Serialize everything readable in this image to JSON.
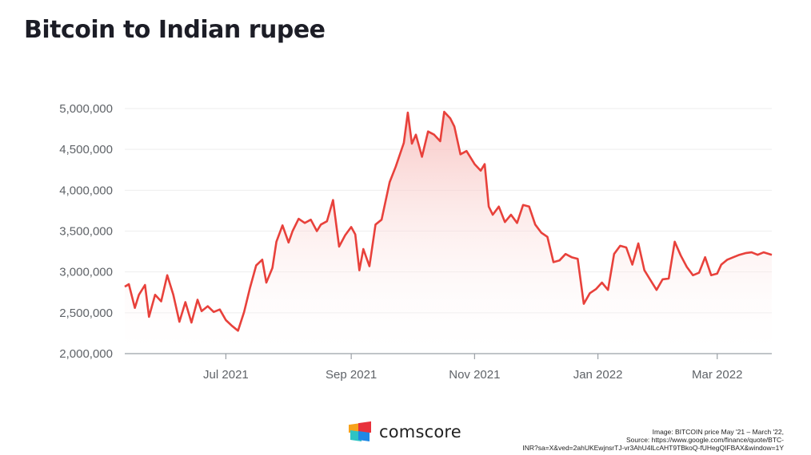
{
  "slide": {
    "title": "Bitcoin to Indian rupee"
  },
  "logo": {
    "icon": "comscore-logo-icon",
    "text": "comscore",
    "colors": {
      "orange": "#f7a21b",
      "red": "#e8313b",
      "blue": "#1e88e5",
      "teal": "#2ec4c4"
    }
  },
  "caption": {
    "line1": "Image: BITCOIN price May '21 – March '22,",
    "line2": "Source: https://www.google.com/finance/quote/BTC-",
    "line3": "INR?sa=X&ved=2ahUKEwjnsrTJ-vr3AhU4lLcAHT9TBkoQ-fUHegQIFBAX&window=1Y"
  },
  "chart_data": {
    "type": "area",
    "title": "",
    "xlabel": "",
    "ylabel": "",
    "ylim": [
      2000000,
      5000000
    ],
    "yticks": [
      2000000,
      2500000,
      3000000,
      3500000,
      4000000,
      4500000,
      5000000
    ],
    "ytick_labels": [
      "2,000,000",
      "2,500,000",
      "3,000,000",
      "3,500,000",
      "4,000,000",
      "4,500,000",
      "5,000,000"
    ],
    "xlim": [
      "2021-05-12",
      "2022-03-28"
    ],
    "xticks": [
      "2021-07-01",
      "2021-09-01",
      "2021-11-01",
      "2022-01-01",
      "2022-03-01"
    ],
    "xtick_labels": [
      "Jul 2021",
      "Sep 2021",
      "Nov 2021",
      "Jan 2022",
      "Mar 2022"
    ],
    "grid": true,
    "legend": "none",
    "colors": {
      "line": "#e8413b",
      "fill_top": "#f6b3b0",
      "grid": "#eeeeee",
      "axis": "#9aa0a6"
    },
    "series": [
      {
        "x": [
          "2021-05-12",
          "2021-05-14",
          "2021-05-17",
          "2021-05-19",
          "2021-05-22",
          "2021-05-24",
          "2021-05-27",
          "2021-05-30",
          "2021-06-02",
          "2021-06-05",
          "2021-06-08",
          "2021-06-11",
          "2021-06-14",
          "2021-06-17",
          "2021-06-19",
          "2021-06-22",
          "2021-06-25",
          "2021-06-28",
          "2021-07-01",
          "2021-07-04",
          "2021-07-07",
          "2021-07-10",
          "2021-07-13",
          "2021-07-16",
          "2021-07-19",
          "2021-07-21",
          "2021-07-24",
          "2021-07-26",
          "2021-07-29",
          "2021-08-01",
          "2021-08-03",
          "2021-08-06",
          "2021-08-09",
          "2021-08-12",
          "2021-08-15",
          "2021-08-17",
          "2021-08-20",
          "2021-08-23",
          "2021-08-26",
          "2021-08-29",
          "2021-09-01",
          "2021-09-03",
          "2021-09-05",
          "2021-09-07",
          "2021-09-10",
          "2021-09-13",
          "2021-09-16",
          "2021-09-20",
          "2021-09-23",
          "2021-09-27",
          "2021-09-29",
          "2021-10-01",
          "2021-10-03",
          "2021-10-06",
          "2021-10-09",
          "2021-10-12",
          "2021-10-15",
          "2021-10-17",
          "2021-10-20",
          "2021-10-22",
          "2021-10-25",
          "2021-10-28",
          "2021-11-01",
          "2021-11-04",
          "2021-11-06",
          "2021-11-08",
          "2021-11-10",
          "2021-11-13",
          "2021-11-16",
          "2021-11-19",
          "2021-11-22",
          "2021-11-25",
          "2021-11-28",
          "2021-12-01",
          "2021-12-04",
          "2021-12-07",
          "2021-12-10",
          "2021-12-13",
          "2021-12-16",
          "2021-12-19",
          "2021-12-22",
          "2021-12-25",
          "2021-12-28",
          "2021-12-31",
          "2022-01-03",
          "2022-01-06",
          "2022-01-09",
          "2022-01-12",
          "2022-01-15",
          "2022-01-18",
          "2022-01-21",
          "2022-01-24",
          "2022-01-27",
          "2022-01-30",
          "2022-02-02",
          "2022-02-05",
          "2022-02-08",
          "2022-02-11",
          "2022-02-14",
          "2022-02-17",
          "2022-02-20",
          "2022-02-23",
          "2022-02-26",
          "2022-03-01",
          "2022-03-03",
          "2022-03-06",
          "2022-03-09",
          "2022-03-12",
          "2022-03-15",
          "2022-03-18",
          "2022-03-21",
          "2022-03-24",
          "2022-03-28"
        ],
        "values": [
          2820000,
          2850000,
          2560000,
          2720000,
          2840000,
          2450000,
          2720000,
          2640000,
          2960000,
          2720000,
          2390000,
          2630000,
          2380000,
          2660000,
          2520000,
          2580000,
          2510000,
          2540000,
          2410000,
          2340000,
          2280000,
          2510000,
          2810000,
          3080000,
          3150000,
          2870000,
          3050000,
          3370000,
          3570000,
          3360000,
          3500000,
          3650000,
          3600000,
          3640000,
          3500000,
          3580000,
          3620000,
          3880000,
          3310000,
          3450000,
          3550000,
          3460000,
          3020000,
          3280000,
          3070000,
          3580000,
          3640000,
          4100000,
          4290000,
          4580000,
          4950000,
          4570000,
          4680000,
          4410000,
          4720000,
          4680000,
          4600000,
          4960000,
          4880000,
          4780000,
          4440000,
          4480000,
          4320000,
          4240000,
          4320000,
          3800000,
          3700000,
          3800000,
          3610000,
          3700000,
          3600000,
          3820000,
          3800000,
          3580000,
          3480000,
          3430000,
          3120000,
          3140000,
          3220000,
          3180000,
          3160000,
          2610000,
          2740000,
          2790000,
          2870000,
          2780000,
          3220000,
          3320000,
          3300000,
          3090000,
          3350000,
          3020000,
          2900000,
          2780000,
          2910000,
          2920000,
          3370000,
          3200000,
          3060000,
          2960000,
          2990000,
          3180000,
          2960000,
          2980000,
          3090000,
          3150000,
          3180000,
          3210000,
          3230000,
          3240000,
          3210000,
          3240000,
          3210000
        ]
      }
    ]
  }
}
